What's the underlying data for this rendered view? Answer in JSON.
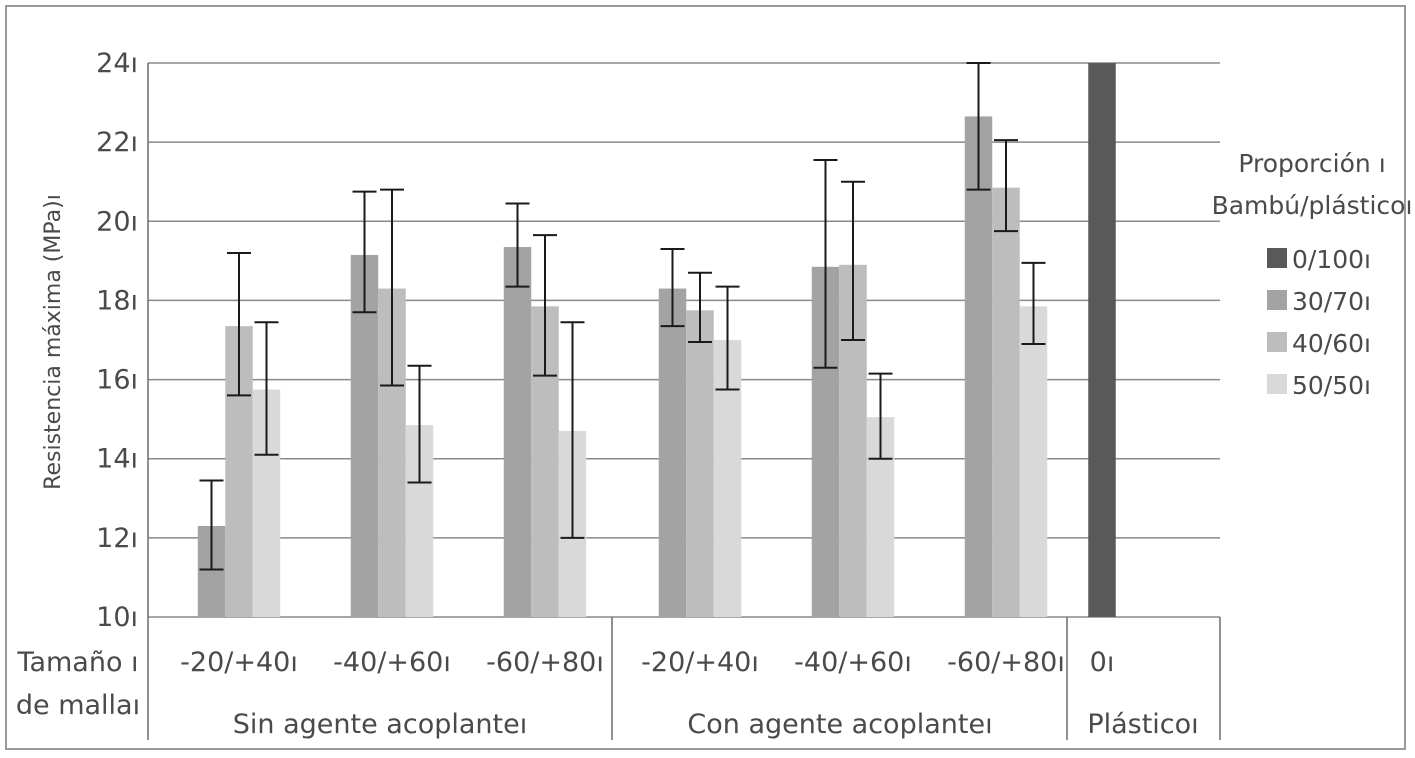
{
  "chart_data": {
    "type": "bar",
    "ylabel": "Resistencia máxima (MPa)ı",
    "ylim": [
      10,
      24
    ],
    "y_ticks": [
      "10ı",
      "12ı",
      "14ı",
      "16ı",
      "18ı",
      "20ı",
      "22ı",
      "24ı"
    ],
    "y_tick_values": [
      10,
      12,
      14,
      16,
      18,
      20,
      22,
      24
    ],
    "grid": true,
    "legend": {
      "title_line1": "Proporción ı",
      "title_line2": "Bambú/plásticoı",
      "placement": "right",
      "entries": [
        "0/100ı",
        "30/70ı",
        "40/60ı",
        "50/50ı"
      ]
    },
    "colors": [
      "#595959",
      "#a3a3a3",
      "#bdbdbd",
      "#d9d9d9"
    ],
    "x_axis_row_label_line1": "Tamaño ı",
    "x_axis_row_label_line2": "de mallaı",
    "group_labels": [
      "Sin agente acoplanteı",
      "Con agente acoplanteı",
      "Plásticoı"
    ],
    "categories": [
      {
        "label": "-20/+40ı",
        "group": 0,
        "bars": [
          {
            "series": 1,
            "value": 12.3,
            "error": [
              11.2,
              13.45
            ]
          },
          {
            "series": 2,
            "value": 17.35,
            "error": [
              15.6,
              19.2
            ]
          },
          {
            "series": 3,
            "value": 15.75,
            "error": [
              14.1,
              17.45
            ]
          }
        ]
      },
      {
        "label": "-40/+60ı",
        "group": 0,
        "bars": [
          {
            "series": 1,
            "value": 19.15,
            "error": [
              17.7,
              20.75
            ]
          },
          {
            "series": 2,
            "value": 18.3,
            "error": [
              15.85,
              20.8
            ]
          },
          {
            "series": 3,
            "value": 14.85,
            "error": [
              13.4,
              16.35
            ]
          }
        ]
      },
      {
        "label": "-60/+80ı",
        "group": 0,
        "bars": [
          {
            "series": 1,
            "value": 19.35,
            "error": [
              18.35,
              20.45
            ]
          },
          {
            "series": 2,
            "value": 17.85,
            "error": [
              16.1,
              19.65
            ]
          },
          {
            "series": 3,
            "value": 14.7,
            "error": [
              12.0,
              17.45
            ]
          }
        ]
      },
      {
        "label": "-20/+40ı",
        "group": 1,
        "bars": [
          {
            "series": 1,
            "value": 18.3,
            "error": [
              17.35,
              19.3
            ]
          },
          {
            "series": 2,
            "value": 17.75,
            "error": [
              16.95,
              18.7
            ]
          },
          {
            "series": 3,
            "value": 17.0,
            "error": [
              15.75,
              18.35
            ]
          }
        ]
      },
      {
        "label": "-40/+60ı",
        "group": 1,
        "bars": [
          {
            "series": 1,
            "value": 18.85,
            "error": [
              16.3,
              21.55
            ]
          },
          {
            "series": 2,
            "value": 18.9,
            "error": [
              17.0,
              21.0
            ]
          },
          {
            "series": 3,
            "value": 15.05,
            "error": [
              14.0,
              16.15
            ]
          }
        ]
      },
      {
        "label": "-60/+80ı",
        "group": 1,
        "bars": [
          {
            "series": 1,
            "value": 22.65,
            "error": [
              20.8,
              24.0
            ]
          },
          {
            "series": 2,
            "value": 20.85,
            "error": [
              19.75,
              22.05
            ]
          },
          {
            "series": 3,
            "value": 17.85,
            "error": [
              16.9,
              18.95
            ]
          }
        ]
      },
      {
        "label": "0ı",
        "group": 2,
        "bars": [
          {
            "series": 0,
            "value": 24,
            "error": null
          }
        ]
      }
    ]
  }
}
